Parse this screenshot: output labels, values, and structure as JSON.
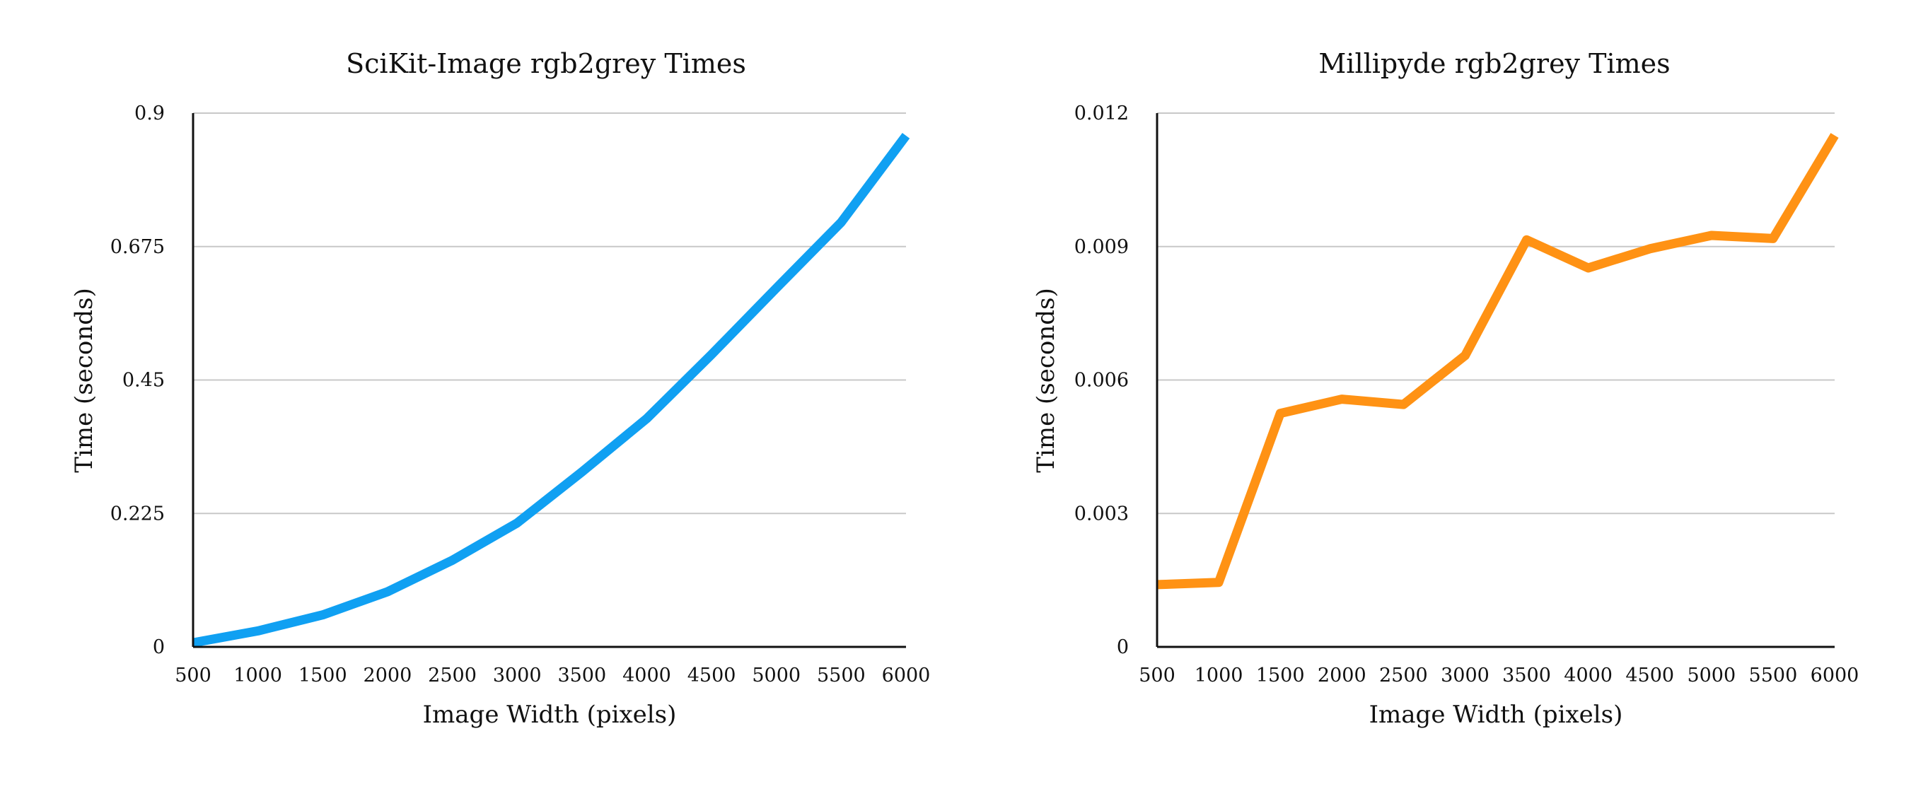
{
  "chart_data": [
    {
      "type": "line",
      "title": "SciKit-Image rgb2grey Times",
      "xlabel": "Image Width (pixels)",
      "ylabel": "Time (seconds)",
      "x": [
        500,
        1000,
        1500,
        2000,
        2500,
        3000,
        3500,
        4000,
        4500,
        5000,
        5500,
        6000
      ],
      "xticks": [
        "500",
        "1000",
        "1500",
        "2000",
        "2500",
        "3000",
        "3500",
        "4000",
        "4500",
        "5000",
        "5500",
        "6000"
      ],
      "yticks": [
        "0",
        "0.225",
        "0.45",
        "0.675",
        "0.9"
      ],
      "ylim": [
        0,
        0.9
      ],
      "grid": true,
      "series": [
        {
          "color": "#10a0f2",
          "values": [
            0.007,
            0.027,
            0.054,
            0.093,
            0.146,
            0.209,
            0.295,
            0.385,
            0.493,
            0.605,
            0.716,
            0.862
          ]
        }
      ]
    },
    {
      "type": "line",
      "title": "Millipyde rgb2grey Times",
      "xlabel": "Image Width (pixels)",
      "ylabel": "Time (seconds)",
      "x": [
        500,
        1000,
        1500,
        2000,
        2500,
        3000,
        3500,
        4000,
        4500,
        5000,
        5500,
        6000
      ],
      "xticks": [
        "500",
        "1000",
        "1500",
        "2000",
        "2500",
        "3000",
        "3500",
        "4000",
        "4500",
        "5000",
        "5500",
        "6000"
      ],
      "yticks": [
        "0",
        "0.003",
        "0.006",
        "0.009",
        "0.012"
      ],
      "ylim": [
        0,
        0.012
      ],
      "grid": true,
      "series": [
        {
          "color": "#ff9214",
          "values": [
            0.0014,
            0.00145,
            0.00525,
            0.00557,
            0.00545,
            0.00655,
            0.00915,
            0.00852,
            0.00895,
            0.00925,
            0.00918,
            0.0115
          ]
        }
      ]
    }
  ]
}
